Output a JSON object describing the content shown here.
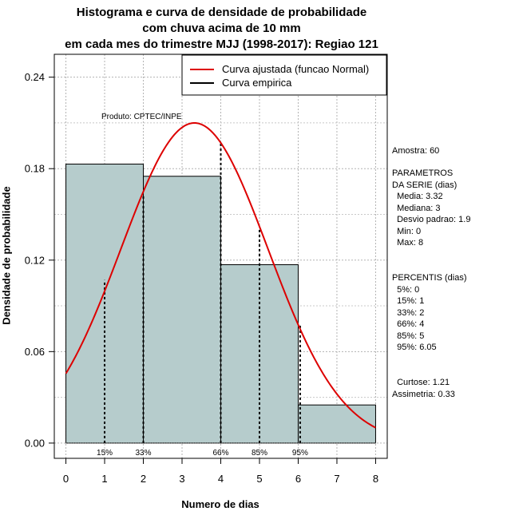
{
  "chart_data": {
    "type": "bar",
    "title_lines": [
      "Histograma e curva de densidade de probabilidade",
      "com chuva acima de 10 mm",
      "em cada mes do trimestre MJJ (1998-2017): Regiao 121"
    ],
    "xlabel": "Numero de dias",
    "ylabel": "Densidade de probabilidade",
    "xlim": [
      -0.3,
      8.3
    ],
    "ylim": [
      -0.01,
      0.255
    ],
    "x_ticks": [
      "0",
      "1",
      "2",
      "3",
      "4",
      "5",
      "6",
      "7",
      "8"
    ],
    "y_ticks": [
      "0.00",
      "0.06",
      "0.12",
      "0.18",
      "0.24"
    ],
    "x_tick_values": [
      0,
      1,
      2,
      3,
      4,
      5,
      6,
      7,
      8
    ],
    "y_tick_values": [
      0,
      0.06,
      0.12,
      0.18,
      0.24
    ],
    "grid": true,
    "bars": [
      {
        "x0": 0,
        "x1": 2,
        "density": 0.183
      },
      {
        "x0": 2,
        "x1": 4,
        "density": 0.175
      },
      {
        "x0": 4,
        "x1": 6,
        "density": 0.117
      },
      {
        "x0": 6,
        "x1": 8,
        "density": 0.025
      }
    ],
    "bar_color": "#b6cccc",
    "fitted_curve": {
      "name": "Curva ajustada (funcao Normal)",
      "mean": 3.32,
      "sd": 1.9,
      "color": "#dd0000"
    },
    "empirical_curve": {
      "name": "Curva empirica",
      "color": "#000000"
    },
    "percentile_lines": [
      {
        "label": "15%",
        "x": 1,
        "y": 0.107
      },
      {
        "label": "33%",
        "x": 2,
        "y": 0.163
      },
      {
        "label": "66%",
        "x": 4,
        "y": 0.198
      },
      {
        "label": "85%",
        "x": 5,
        "y": 0.141
      },
      {
        "label": "95%",
        "x": 6.05,
        "y": 0.078
      }
    ],
    "annotation": "Produto: CPTEC/INPE",
    "legend_position": "top-right"
  },
  "side_panel": {
    "amostra": "Amostra: 60",
    "parametros": "PARAMETROS\nDA SERIE (dias)\n  Media: 3.32\n  Mediana: 3\n  Desvio padrao: 1.9\n  Min: 0\n  Max: 8",
    "percentis": "PERCENTIS (dias)\n  5%: 0\n  15%: 1\n  33%: 2\n  66%: 4\n  85%: 5\n  95%: 6.05",
    "estatisticas": "  Curtose: 1.21\nAssimetria: 0.33"
  }
}
